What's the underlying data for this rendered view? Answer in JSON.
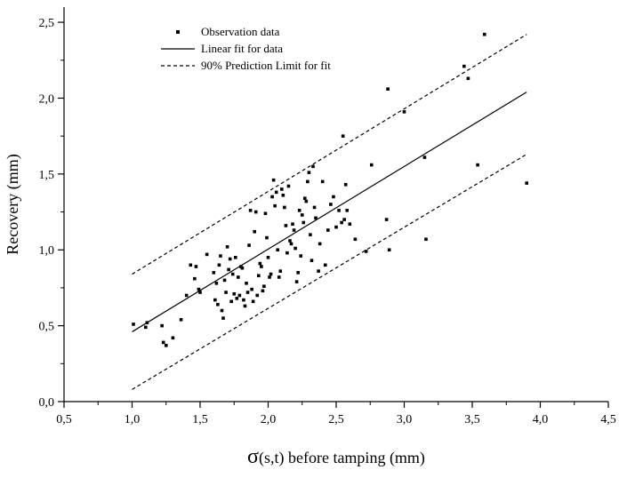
{
  "chart_data": {
    "type": "scatter",
    "xlabel": "σ(s,t) before tamping (mm)",
    "xlabel_symbol": "σ",
    "xlabel_rest": "(s,t) before tamping (mm)",
    "ylabel": "Recovery (mm)",
    "xlim": [
      0.5,
      4.5
    ],
    "ylim": [
      0.0,
      2.6
    ],
    "xticks": [
      "0,5",
      "1,0",
      "1,5",
      "2,0",
      "2,5",
      "3,0",
      "3,5",
      "4,0",
      "4,5"
    ],
    "yticks": [
      "0,0",
      "0,5",
      "1,0",
      "1,5",
      "2,0",
      "2,5"
    ],
    "x_tick_values": [
      0.5,
      1.0,
      1.5,
      2.0,
      2.5,
      3.0,
      3.5,
      4.0,
      4.5
    ],
    "y_tick_values": [
      0.0,
      0.5,
      1.0,
      1.5,
      2.0,
      2.5
    ],
    "grid": false,
    "legend_position": "top-left",
    "legend": [
      {
        "label": "Observation data",
        "style": "square-marker"
      },
      {
        "label": "Linear fit for data",
        "style": "solid-line"
      },
      {
        "label": "90% Prediction Limit for fit",
        "style": "dashed-line"
      }
    ],
    "series": [
      {
        "name": "Observation data",
        "kind": "points",
        "points": [
          [
            1.01,
            0.51
          ],
          [
            1.1,
            0.49
          ],
          [
            1.11,
            0.52
          ],
          [
            1.22,
            0.5
          ],
          [
            1.23,
            0.39
          ],
          [
            1.25,
            0.37
          ],
          [
            1.3,
            0.42
          ],
          [
            1.36,
            0.54
          ],
          [
            1.4,
            0.7
          ],
          [
            1.43,
            0.9
          ],
          [
            1.46,
            0.81
          ],
          [
            1.47,
            0.89
          ],
          [
            1.49,
            0.74
          ],
          [
            1.5,
            0.72
          ],
          [
            1.55,
            0.97
          ],
          [
            1.6,
            0.85
          ],
          [
            1.61,
            0.67
          ],
          [
            1.62,
            0.78
          ],
          [
            1.63,
            0.64
          ],
          [
            1.64,
            0.9
          ],
          [
            1.65,
            0.96
          ],
          [
            1.66,
            0.6
          ],
          [
            1.67,
            0.55
          ],
          [
            1.68,
            0.8
          ],
          [
            1.69,
            0.72
          ],
          [
            1.7,
            1.02
          ],
          [
            1.71,
            0.87
          ],
          [
            1.72,
            0.94
          ],
          [
            1.73,
            0.66
          ],
          [
            1.74,
            0.84
          ],
          [
            1.75,
            0.71
          ],
          [
            1.76,
            0.95
          ],
          [
            1.77,
            0.68
          ],
          [
            1.78,
            0.82
          ],
          [
            1.79,
            0.7
          ],
          [
            1.8,
            0.89
          ],
          [
            1.81,
            0.88
          ],
          [
            1.82,
            0.67
          ],
          [
            1.83,
            0.63
          ],
          [
            1.84,
            0.78
          ],
          [
            1.85,
            0.72
          ],
          [
            1.86,
            1.03
          ],
          [
            1.87,
            1.26
          ],
          [
            1.88,
            0.74
          ],
          [
            1.89,
            0.66
          ],
          [
            1.9,
            1.12
          ],
          [
            1.91,
            1.25
          ],
          [
            1.92,
            0.7
          ],
          [
            1.93,
            0.83
          ],
          [
            1.94,
            0.91
          ],
          [
            1.95,
            0.89
          ],
          [
            1.96,
            0.73
          ],
          [
            1.97,
            0.76
          ],
          [
            1.98,
            1.24
          ],
          [
            1.99,
            1.08
          ],
          [
            2.0,
            0.95
          ],
          [
            2.01,
            0.82
          ],
          [
            2.02,
            0.84
          ],
          [
            2.03,
            1.35
          ],
          [
            2.04,
            1.46
          ],
          [
            2.05,
            1.29
          ],
          [
            2.06,
            1.38
          ],
          [
            2.07,
            1.0
          ],
          [
            2.08,
            0.82
          ],
          [
            2.09,
            0.86
          ],
          [
            2.1,
            1.4
          ],
          [
            2.11,
            1.36
          ],
          [
            2.12,
            1.28
          ],
          [
            2.13,
            1.16
          ],
          [
            2.14,
            0.98
          ],
          [
            2.15,
            1.42
          ],
          [
            2.16,
            1.06
          ],
          [
            2.17,
            1.04
          ],
          [
            2.18,
            1.17
          ],
          [
            2.19,
            1.13
          ],
          [
            2.2,
            1.01
          ],
          [
            2.21,
            0.79
          ],
          [
            2.22,
            0.85
          ],
          [
            2.23,
            1.26
          ],
          [
            2.24,
            0.96
          ],
          [
            2.25,
            1.23
          ],
          [
            2.26,
            1.18
          ],
          [
            2.27,
            1.34
          ],
          [
            2.28,
            1.32
          ],
          [
            2.29,
            1.45
          ],
          [
            2.3,
            1.51
          ],
          [
            2.31,
            1.1
          ],
          [
            2.32,
            0.93
          ],
          [
            2.33,
            1.55
          ],
          [
            2.34,
            1.28
          ],
          [
            2.35,
            1.21
          ],
          [
            2.37,
            0.86
          ],
          [
            2.38,
            1.04
          ],
          [
            2.4,
            1.45
          ],
          [
            2.42,
            0.9
          ],
          [
            2.44,
            1.13
          ],
          [
            2.46,
            1.3
          ],
          [
            2.48,
            1.35
          ],
          [
            2.5,
            1.15
          ],
          [
            2.52,
            1.26
          ],
          [
            2.54,
            1.18
          ],
          [
            2.55,
            1.75
          ],
          [
            2.56,
            1.2
          ],
          [
            2.57,
            1.43
          ],
          [
            2.58,
            1.26
          ],
          [
            2.6,
            1.17
          ],
          [
            2.64,
            1.07
          ],
          [
            2.72,
            0.99
          ],
          [
            2.76,
            1.56
          ],
          [
            2.87,
            1.2
          ],
          [
            2.88,
            2.06
          ],
          [
            2.89,
            1.0
          ],
          [
            3.0,
            1.91
          ],
          [
            3.15,
            1.61
          ],
          [
            3.16,
            1.07
          ],
          [
            3.44,
            2.21
          ],
          [
            3.47,
            2.13
          ],
          [
            3.54,
            1.56
          ],
          [
            3.59,
            2.42
          ],
          [
            3.9,
            1.44
          ]
        ]
      },
      {
        "name": "Linear fit for data",
        "kind": "line",
        "points": [
          [
            1.0,
            0.46
          ],
          [
            3.9,
            2.04
          ]
        ]
      },
      {
        "name": "90% Prediction Limit for fit",
        "kind": "band-upper",
        "points": [
          [
            1.0,
            0.84
          ],
          [
            3.9,
            2.42
          ]
        ]
      },
      {
        "name": "90% Prediction Limit for fit",
        "kind": "band-lower",
        "points": [
          [
            1.0,
            0.08
          ],
          [
            3.9,
            1.63
          ]
        ]
      }
    ]
  }
}
